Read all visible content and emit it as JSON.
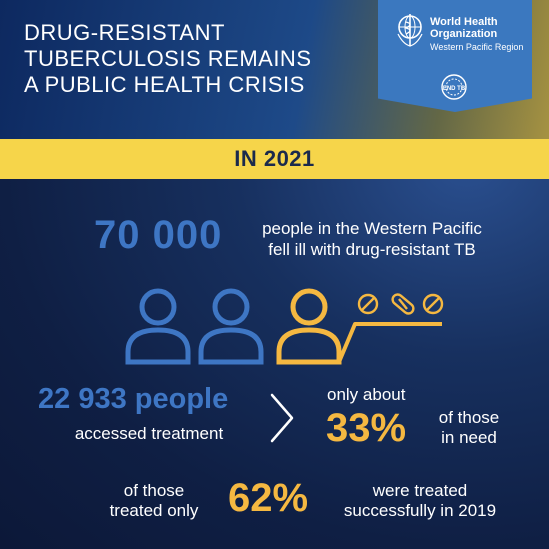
{
  "headline": {
    "lines": [
      "DRUG-RESISTANT",
      "TUBERCULOSIS REMAINS",
      "A PUBLIC HEALTH CRISIS"
    ]
  },
  "logo": {
    "org_line1": "World Health",
    "org_line2": "Organization",
    "region": "Western Pacific Region",
    "endtb_text": "END TB"
  },
  "year_band": {
    "label": "IN 2021"
  },
  "ill": {
    "count": "70 000",
    "line1": "people in the Western Pacific",
    "line2": "fell ill with drug-resistant TB"
  },
  "treatment": {
    "count": "22 933 people",
    "label": "accessed treatment",
    "only_about": "only about",
    "percent": "33%",
    "of_those": "of those",
    "in_need": "in need"
  },
  "success": {
    "of_those": "of those",
    "treated_only": "treated only",
    "percent": "62%",
    "line1": "were treated",
    "line2": "successfully in 2019"
  },
  "colors": {
    "accent_blue": "#3e76c4",
    "accent_yellow": "#f5b841",
    "band_yellow": "#f6d54a",
    "badge_blue": "#3b78bf",
    "background_navy": "#0f1f44"
  },
  "icons": {
    "people": [
      "person-icon",
      "person-icon",
      "person-icon"
    ],
    "pills": [
      "pill-icon",
      "capsule-icon",
      "pill-icon"
    ],
    "arrow": "chevron-right-icon"
  }
}
